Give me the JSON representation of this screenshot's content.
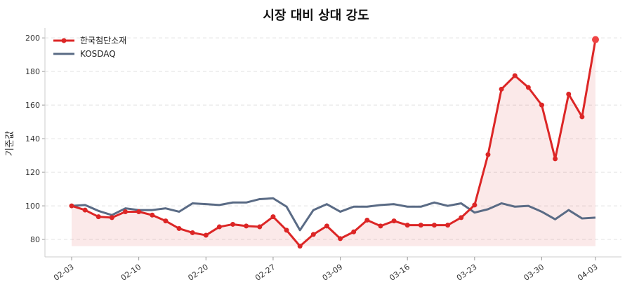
{
  "chart_data": {
    "type": "line",
    "title": "시장 대비 상대 강도",
    "xlabel": "",
    "ylabel": "기준값",
    "ylim": [
      69.6,
      205.9
    ],
    "yticks": [
      80,
      100,
      120,
      140,
      160,
      180,
      200
    ],
    "xticks": [
      {
        "index": 0,
        "label": "02-03"
      },
      {
        "index": 5,
        "label": "02-10"
      },
      {
        "index": 10,
        "label": "02-20"
      },
      {
        "index": 15,
        "label": "02-27"
      },
      {
        "index": 20,
        "label": "03-09"
      },
      {
        "index": 25,
        "label": "03-16"
      },
      {
        "index": 30,
        "label": "03-23"
      },
      {
        "index": 35,
        "label": "03-30"
      },
      {
        "index": 39,
        "label": "04-03"
      }
    ],
    "grid": "y-dashed",
    "legend_position": "top-left",
    "fill_baseline": 76,
    "series": [
      {
        "name": "한국첨단소재",
        "color": "#dc2626",
        "markers": true,
        "values": [
          100,
          97.5,
          93.5,
          93,
          96.5,
          96.5,
          94.5,
          91,
          86.5,
          84,
          82.5,
          87.5,
          89,
          88,
          87.5,
          93.5,
          85.5,
          76,
          83,
          88,
          80.5,
          84.5,
          91.5,
          88,
          91,
          88.5,
          88.5,
          88.5,
          88.5,
          93,
          100.5,
          130.5,
          169.5,
          177.5,
          170.5,
          160,
          128,
          166.5,
          153,
          199
        ]
      },
      {
        "name": "KOSDAQ",
        "color": "#5a6b85",
        "markers": false,
        "values": [
          100,
          100.5,
          97,
          94.5,
          98.5,
          97.5,
          97.5,
          98.5,
          96.5,
          101.5,
          101,
          100.5,
          102,
          102,
          104,
          104.5,
          99.5,
          85.5,
          97.5,
          101,
          96.5,
          99.5,
          99.5,
          100.5,
          101,
          99.5,
          99.5,
          102,
          100,
          101.5,
          96,
          98,
          101.5,
          99.5,
          100,
          96.5,
          92,
          97.5,
          92.5,
          93
        ]
      }
    ]
  }
}
